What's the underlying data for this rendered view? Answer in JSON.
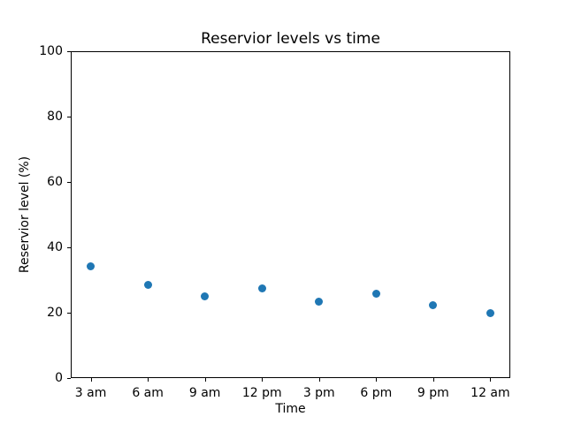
{
  "chart_data": {
    "type": "scatter",
    "title": "Reservior levels vs time",
    "xlabel": "Time",
    "ylabel": "Reservior level (%)",
    "categories": [
      "3 am",
      "6 am",
      "9 am",
      "12 pm",
      "3 pm",
      "6 pm",
      "9 pm",
      "12 am"
    ],
    "values": [
      34.3,
      28.4,
      25.1,
      27.5,
      23.4,
      25.8,
      22.3,
      19.9
    ],
    "ylim": [
      0,
      100
    ],
    "yticks": [
      0,
      20,
      40,
      60,
      80,
      100
    ],
    "grid": false,
    "legend": "none",
    "marker_color": "#1f77b4",
    "background_color": "#ffffff",
    "axis_color": "#000000"
  }
}
